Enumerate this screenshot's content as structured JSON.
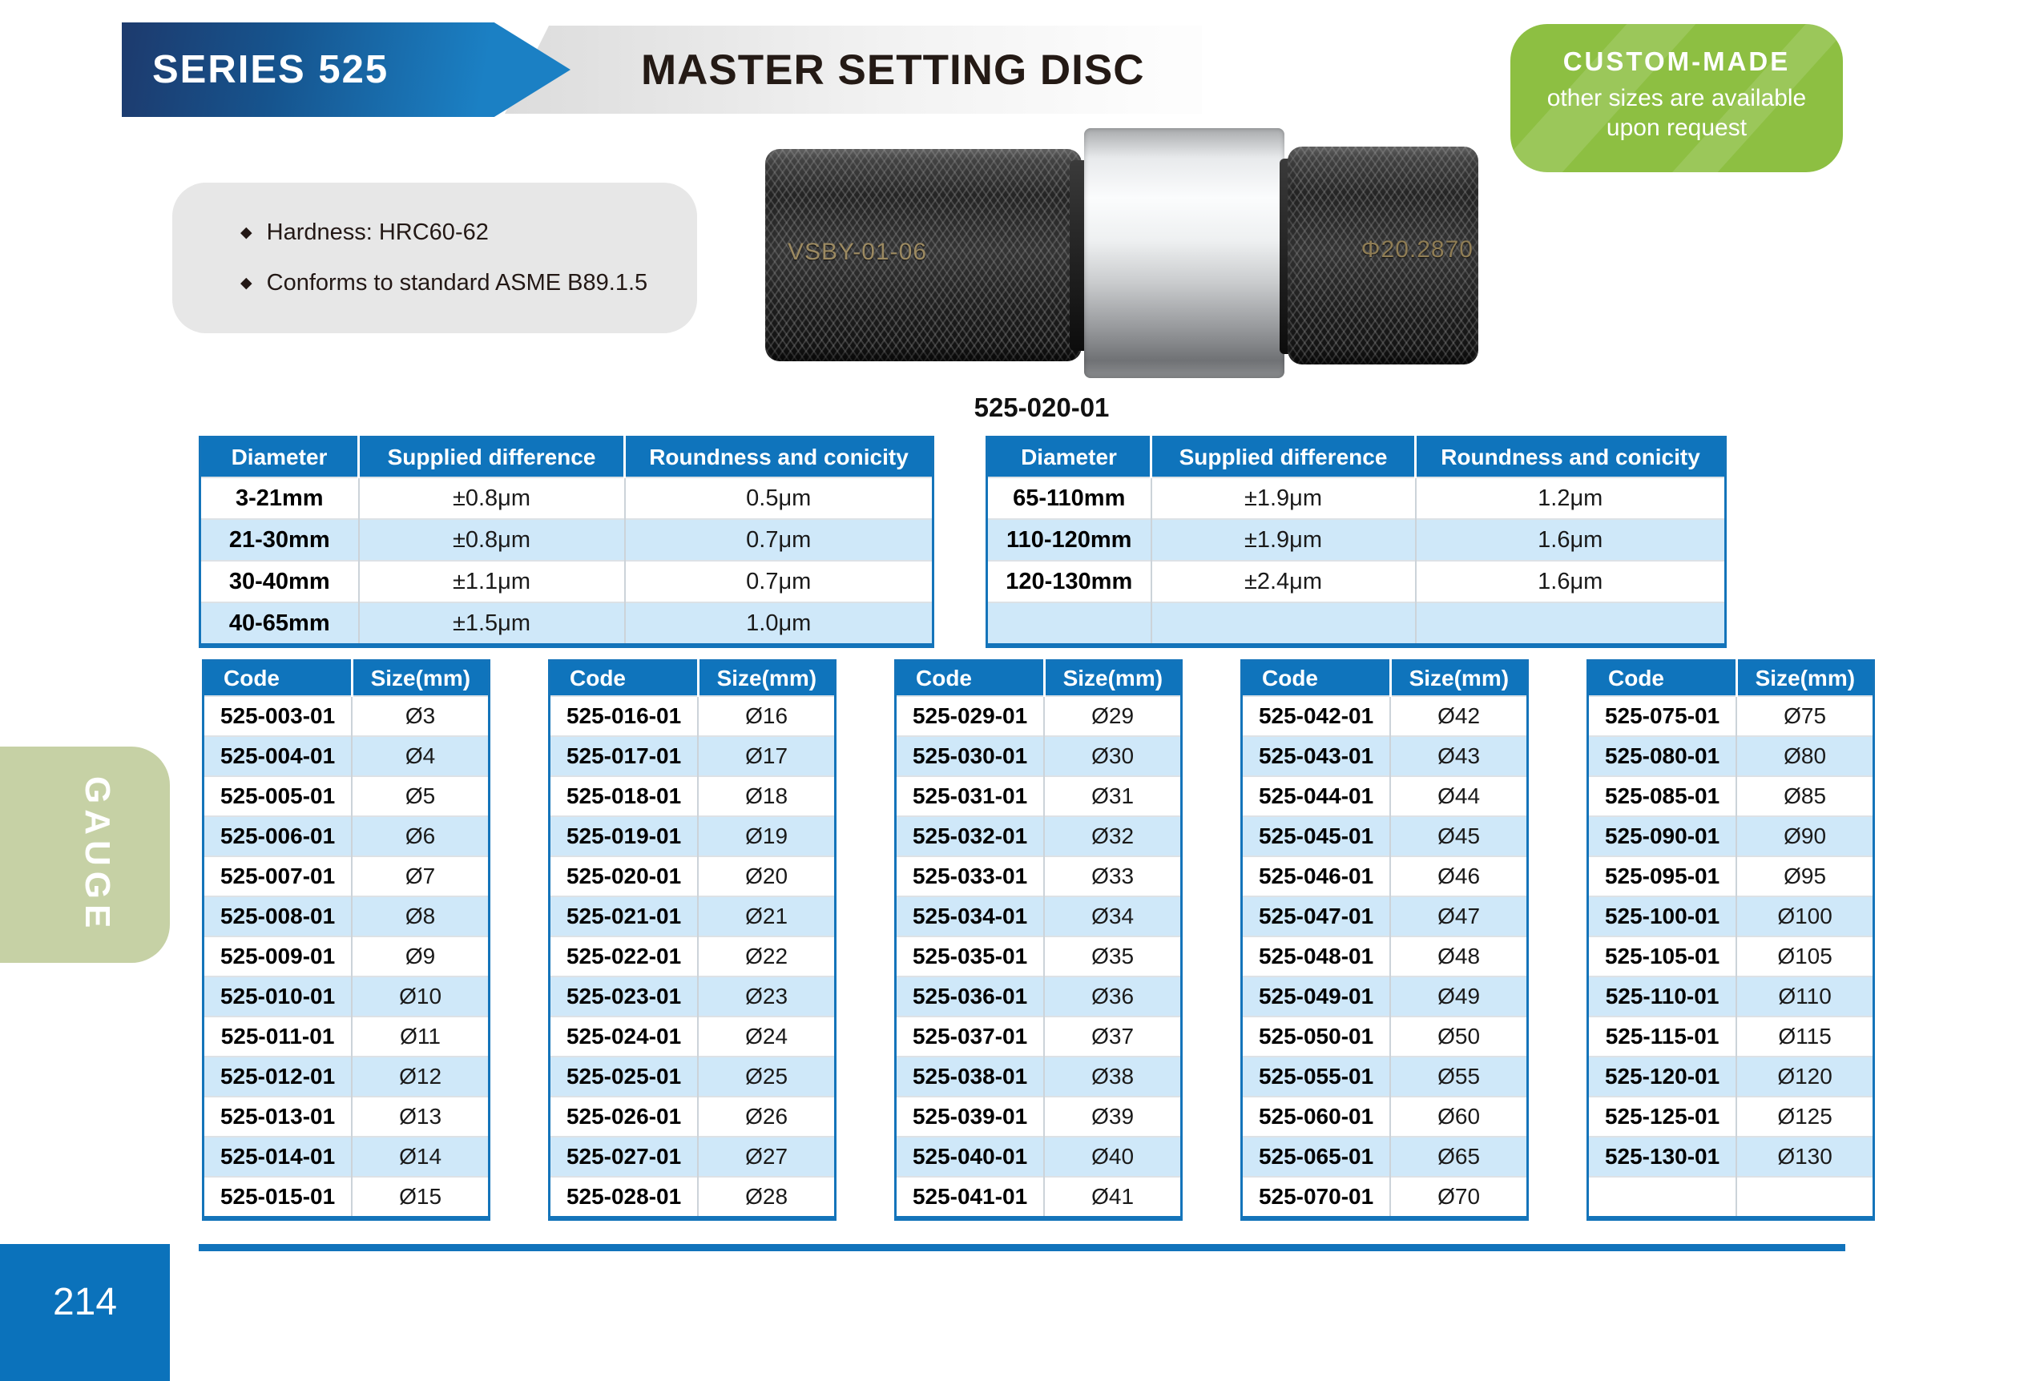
{
  "header": {
    "series": "SERIES 525",
    "title": "MASTER SETTING DISC"
  },
  "badge": {
    "title": "CUSTOM-MADE",
    "line1": "other sizes are available",
    "line2": "upon request"
  },
  "features": [
    "Hardness: HRC60-62",
    "Conforms to standard ASME B89.1.5"
  ],
  "product": {
    "left_marking": "VSBY-01-06",
    "right_marking": "Φ20.2870",
    "caption": "525-020-01"
  },
  "spec_tables": [
    {
      "headers": [
        "Diameter",
        "Supplied difference",
        "Roundness and conicity"
      ],
      "rows": [
        [
          "3-21mm",
          "±0.8μm",
          "0.5μm"
        ],
        [
          "21-30mm",
          "±0.8μm",
          "0.7μm"
        ],
        [
          "30-40mm",
          "±1.1μm",
          "0.7μm"
        ],
        [
          "40-65mm",
          "±1.5μm",
          "1.0μm"
        ]
      ]
    },
    {
      "headers": [
        "Diameter",
        "Supplied difference",
        "Roundness and conicity"
      ],
      "rows": [
        [
          "65-110mm",
          "±1.9μm",
          "1.2μm"
        ],
        [
          "110-120mm",
          "±1.9μm",
          "1.6μm"
        ],
        [
          "120-130mm",
          "±2.4μm",
          "1.6μm"
        ],
        [
          "",
          "",
          ""
        ]
      ]
    }
  ],
  "code_tables": [
    {
      "headers": [
        "Code",
        "Size(mm)"
      ],
      "rows": [
        [
          "525-003-01",
          "Ø3"
        ],
        [
          "525-004-01",
          "Ø4"
        ],
        [
          "525-005-01",
          "Ø5"
        ],
        [
          "525-006-01",
          "Ø6"
        ],
        [
          "525-007-01",
          "Ø7"
        ],
        [
          "525-008-01",
          "Ø8"
        ],
        [
          "525-009-01",
          "Ø9"
        ],
        [
          "525-010-01",
          "Ø10"
        ],
        [
          "525-011-01",
          "Ø11"
        ],
        [
          "525-012-01",
          "Ø12"
        ],
        [
          "525-013-01",
          "Ø13"
        ],
        [
          "525-014-01",
          "Ø14"
        ],
        [
          "525-015-01",
          "Ø15"
        ]
      ]
    },
    {
      "headers": [
        "Code",
        "Size(mm)"
      ],
      "rows": [
        [
          "525-016-01",
          "Ø16"
        ],
        [
          "525-017-01",
          "Ø17"
        ],
        [
          "525-018-01",
          "Ø18"
        ],
        [
          "525-019-01",
          "Ø19"
        ],
        [
          "525-020-01",
          "Ø20"
        ],
        [
          "525-021-01",
          "Ø21"
        ],
        [
          "525-022-01",
          "Ø22"
        ],
        [
          "525-023-01",
          "Ø23"
        ],
        [
          "525-024-01",
          "Ø24"
        ],
        [
          "525-025-01",
          "Ø25"
        ],
        [
          "525-026-01",
          "Ø26"
        ],
        [
          "525-027-01",
          "Ø27"
        ],
        [
          "525-028-01",
          "Ø28"
        ]
      ]
    },
    {
      "headers": [
        "Code",
        "Size(mm)"
      ],
      "rows": [
        [
          "525-029-01",
          "Ø29"
        ],
        [
          "525-030-01",
          "Ø30"
        ],
        [
          "525-031-01",
          "Ø31"
        ],
        [
          "525-032-01",
          "Ø32"
        ],
        [
          "525-033-01",
          "Ø33"
        ],
        [
          "525-034-01",
          "Ø34"
        ],
        [
          "525-035-01",
          "Ø35"
        ],
        [
          "525-036-01",
          "Ø36"
        ],
        [
          "525-037-01",
          "Ø37"
        ],
        [
          "525-038-01",
          "Ø38"
        ],
        [
          "525-039-01",
          "Ø39"
        ],
        [
          "525-040-01",
          "Ø40"
        ],
        [
          "525-041-01",
          "Ø41"
        ]
      ]
    },
    {
      "headers": [
        "Code",
        "Size(mm)"
      ],
      "rows": [
        [
          "525-042-01",
          "Ø42"
        ],
        [
          "525-043-01",
          "Ø43"
        ],
        [
          "525-044-01",
          "Ø44"
        ],
        [
          "525-045-01",
          "Ø45"
        ],
        [
          "525-046-01",
          "Ø46"
        ],
        [
          "525-047-01",
          "Ø47"
        ],
        [
          "525-048-01",
          "Ø48"
        ],
        [
          "525-049-01",
          "Ø49"
        ],
        [
          "525-050-01",
          "Ø50"
        ],
        [
          "525-055-01",
          "Ø55"
        ],
        [
          "525-060-01",
          "Ø60"
        ],
        [
          "525-065-01",
          "Ø65"
        ],
        [
          "525-070-01",
          "Ø70"
        ]
      ]
    },
    {
      "headers": [
        "Code",
        "Size(mm)"
      ],
      "rows": [
        [
          "525-075-01",
          "Ø75"
        ],
        [
          "525-080-01",
          "Ø80"
        ],
        [
          "525-085-01",
          "Ø85"
        ],
        [
          "525-090-01",
          "Ø90"
        ],
        [
          "525-095-01",
          "Ø95"
        ],
        [
          "525-100-01",
          "Ø100"
        ],
        [
          "525-105-01",
          "Ø105"
        ],
        [
          "525-110-01",
          "Ø110"
        ],
        [
          "525-115-01",
          "Ø115"
        ],
        [
          "525-120-01",
          "Ø120"
        ],
        [
          "525-125-01",
          "Ø125"
        ],
        [
          "525-130-01",
          "Ø130"
        ],
        [
          "",
          ""
        ]
      ]
    }
  ],
  "page": {
    "number": "214",
    "side_tab": "GAUGE"
  },
  "colors": {
    "accent_blue": "#0f74bc",
    "row_alt_blue": "#cfe8f9",
    "banner_navy": "#1d3a6d",
    "banner_blue": "#1b80c4",
    "badge_green": "#8dbf42",
    "tab_sage": "#c6d1a5",
    "panel_gray": "#e7e7e7",
    "title_dark": "#241a15"
  }
}
